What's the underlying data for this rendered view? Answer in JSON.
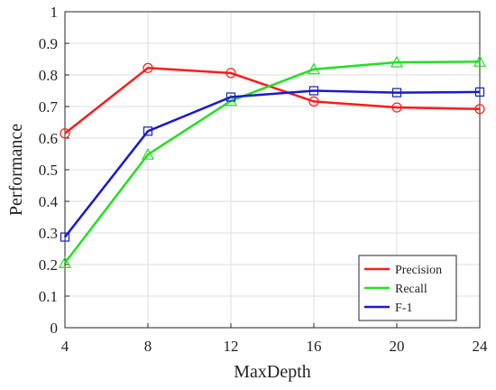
{
  "chart_data": {
    "type": "line",
    "x": [
      4,
      8,
      12,
      16,
      20,
      24
    ],
    "xlabel": "MaxDepth",
    "ylabel": "Performance",
    "xlim": [
      4,
      24
    ],
    "ylim": [
      0,
      1
    ],
    "xticks": [
      "4",
      "8",
      "12",
      "16",
      "20",
      "24"
    ],
    "yticks": [
      "0",
      "0.1",
      "0.2",
      "0.3",
      "0.4",
      "0.5",
      "0.6",
      "0.7",
      "0.8",
      "0.9",
      "1"
    ],
    "grid": true,
    "legend_position": "bottom-right",
    "series": [
      {
        "name": "Precision",
        "color": "#ff1a1a",
        "marker": "circle",
        "values": [
          0.615,
          0.822,
          0.806,
          0.716,
          0.697,
          0.692
        ]
      },
      {
        "name": "Recall",
        "color": "#22e022",
        "marker": "triangle",
        "values": [
          0.205,
          0.548,
          0.718,
          0.818,
          0.84,
          0.842
        ]
      },
      {
        "name": "F-1",
        "color": "#1a1acc",
        "marker": "square",
        "values": [
          0.287,
          0.622,
          0.73,
          0.75,
          0.744,
          0.746
        ]
      }
    ]
  }
}
